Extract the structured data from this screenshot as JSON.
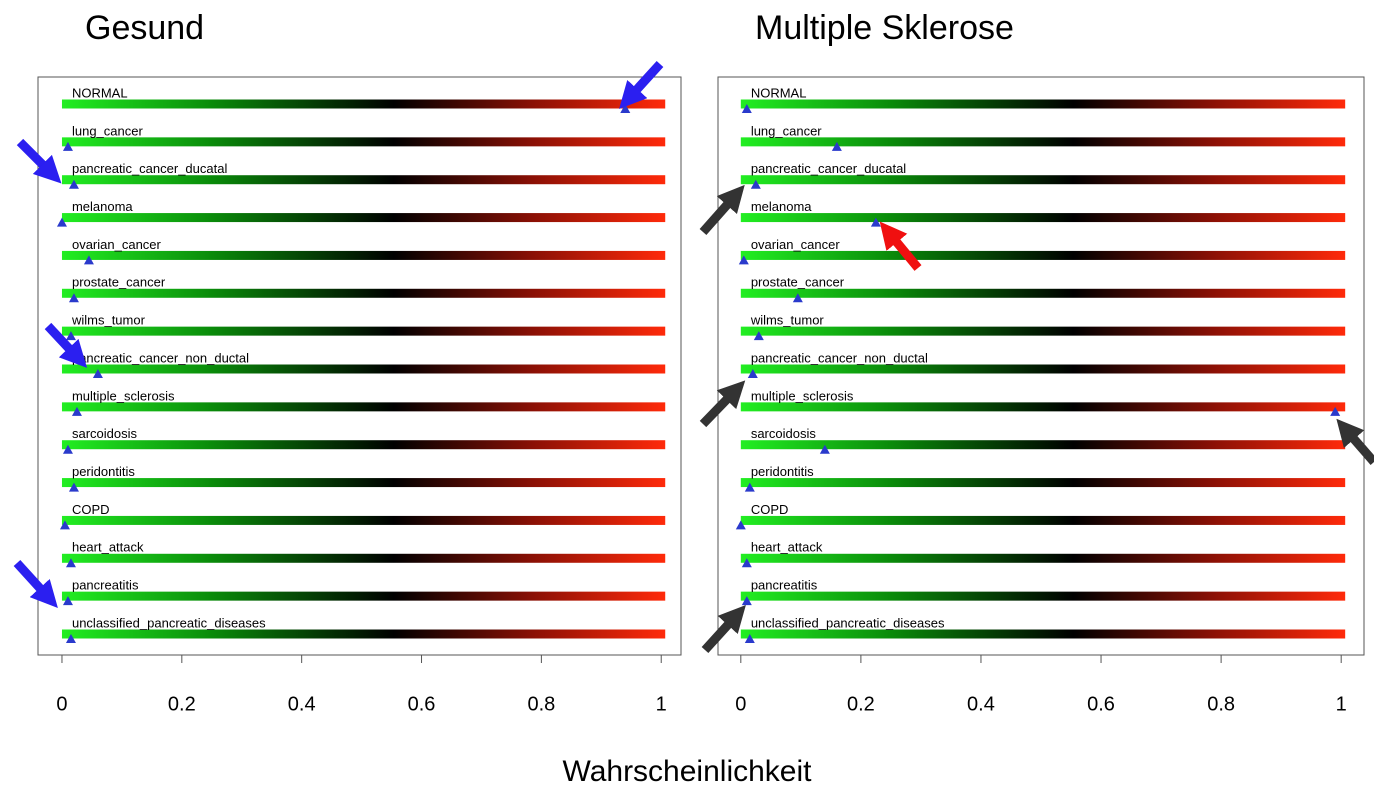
{
  "chart_data": [
    {
      "type": "strip",
      "title": "Gesund",
      "categories": [
        "NORMAL",
        "lung_cancer",
        "pancreatic_cancer_ducatal",
        "melanoma",
        "ovarian_cancer",
        "prostate_cancer",
        "wilms_tumor",
        "pancreatic_cancer_non_ductal",
        "multiple_sclerosis",
        "sarcoidosis",
        "peridontitis",
        "COPD",
        "heart_attack",
        "pancreatitis",
        "unclassified_pancreatic_diseases"
      ],
      "values": [
        0.94,
        0.01,
        0.02,
        0.0,
        0.045,
        0.02,
        0.015,
        0.06,
        0.025,
        0.01,
        0.02,
        0.005,
        0.015,
        0.01,
        0.015
      ],
      "color": "#2a3acc",
      "xlim": [
        -0.04,
        1.033
      ],
      "xticks": [
        0,
        0.2,
        0.4,
        0.6,
        0.8,
        1
      ]
    },
    {
      "type": "strip",
      "title": "Multiple Sklerose",
      "categories": [
        "NORMAL",
        "lung_cancer",
        "pancreatic_cancer_ducatal",
        "melanoma",
        "ovarian_cancer",
        "prostate_cancer",
        "wilms_tumor",
        "pancreatic_cancer_non_ductal",
        "multiple_sclerosis",
        "sarcoidosis",
        "peridontitis",
        "COPD",
        "heart_attack",
        "pancreatitis",
        "unclassified_pancreatic_diseases"
      ],
      "values": [
        0.01,
        0.16,
        0.025,
        0.225,
        0.005,
        0.095,
        0.03,
        0.02,
        0.99,
        0.14,
        0.015,
        0.0,
        0.01,
        0.01,
        0.015
      ],
      "color": "#2a3acc",
      "xlim": [
        -0.038,
        1.038
      ],
      "xticks": [
        0,
        0.2,
        0.4,
        0.6,
        0.8,
        1
      ]
    }
  ],
  "xlabel": "Wahrscheinlichkeit"
}
